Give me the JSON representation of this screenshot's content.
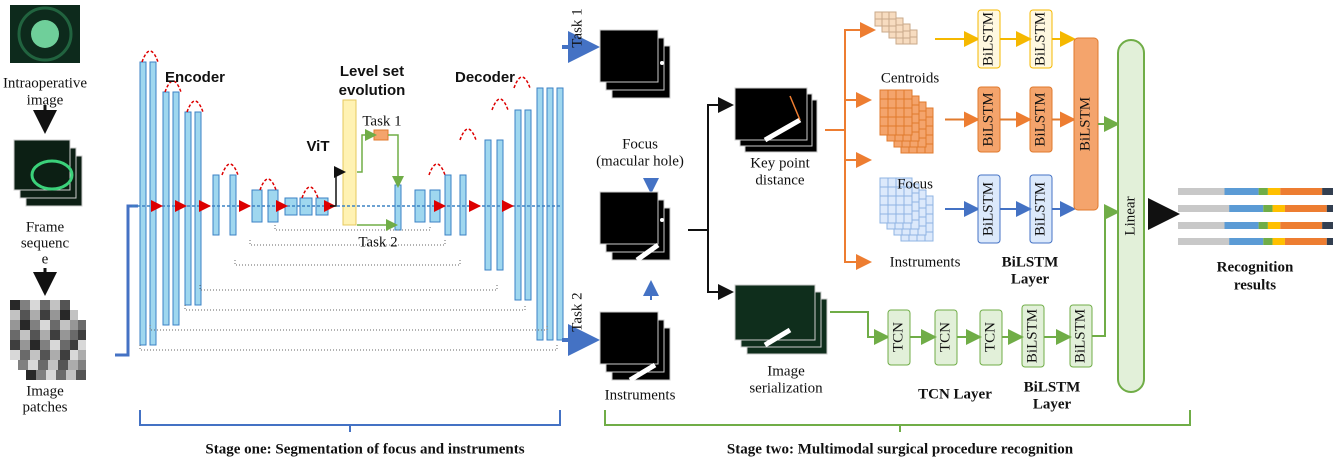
{
  "stage_one": {
    "intraoperative_image": [
      "Intraoperative",
      "image"
    ],
    "frame_sequence": [
      "Frame",
      "sequenc",
      "e"
    ],
    "image_patches": [
      "Image",
      "patches"
    ],
    "encoder": "Encoder",
    "vit": "ViT",
    "level_set": [
      "Level set",
      "evolution"
    ],
    "decoder": "Decoder",
    "inner_task_1": "Task 1",
    "inner_task_2": "Task 2",
    "output_task_1": "Task 1",
    "output_task_2": "Task 2",
    "caption": "Stage one: Segmentation of focus and instruments"
  },
  "stage_two": {
    "focus_output": [
      "Focus",
      "(macular hole)"
    ],
    "instruments_output": "Instruments",
    "key_point": [
      "Key point",
      "distance"
    ],
    "serialization": [
      "Image",
      "serialization"
    ],
    "branches": [
      {
        "name": "Centroids",
        "blocks": [
          "BiLSTM",
          "BiLSTM"
        ]
      },
      {
        "name": "Focus",
        "blocks": [
          "BiLSTM",
          "BiLSTM"
        ]
      },
      {
        "name": "Instruments",
        "blocks": [
          "BiLSTM",
          "BiLSTM"
        ]
      }
    ],
    "fusion_block": "BiLSTM",
    "bilstm_layer": [
      "BiLSTM",
      "Layer"
    ],
    "tcn_blocks": [
      "TCN",
      "TCN",
      "TCN"
    ],
    "tcn_bilstm_blocks": [
      "BiLSTM",
      "BiLSTM"
    ],
    "tcn_layer": "TCN Layer",
    "tcn_bilstm_layer": [
      "BiLSTM",
      "Layer"
    ],
    "linear": "Linear",
    "results": [
      "Recognition",
      "results"
    ],
    "caption": "Stage two: Multimodal surgical procedure recognition"
  }
}
